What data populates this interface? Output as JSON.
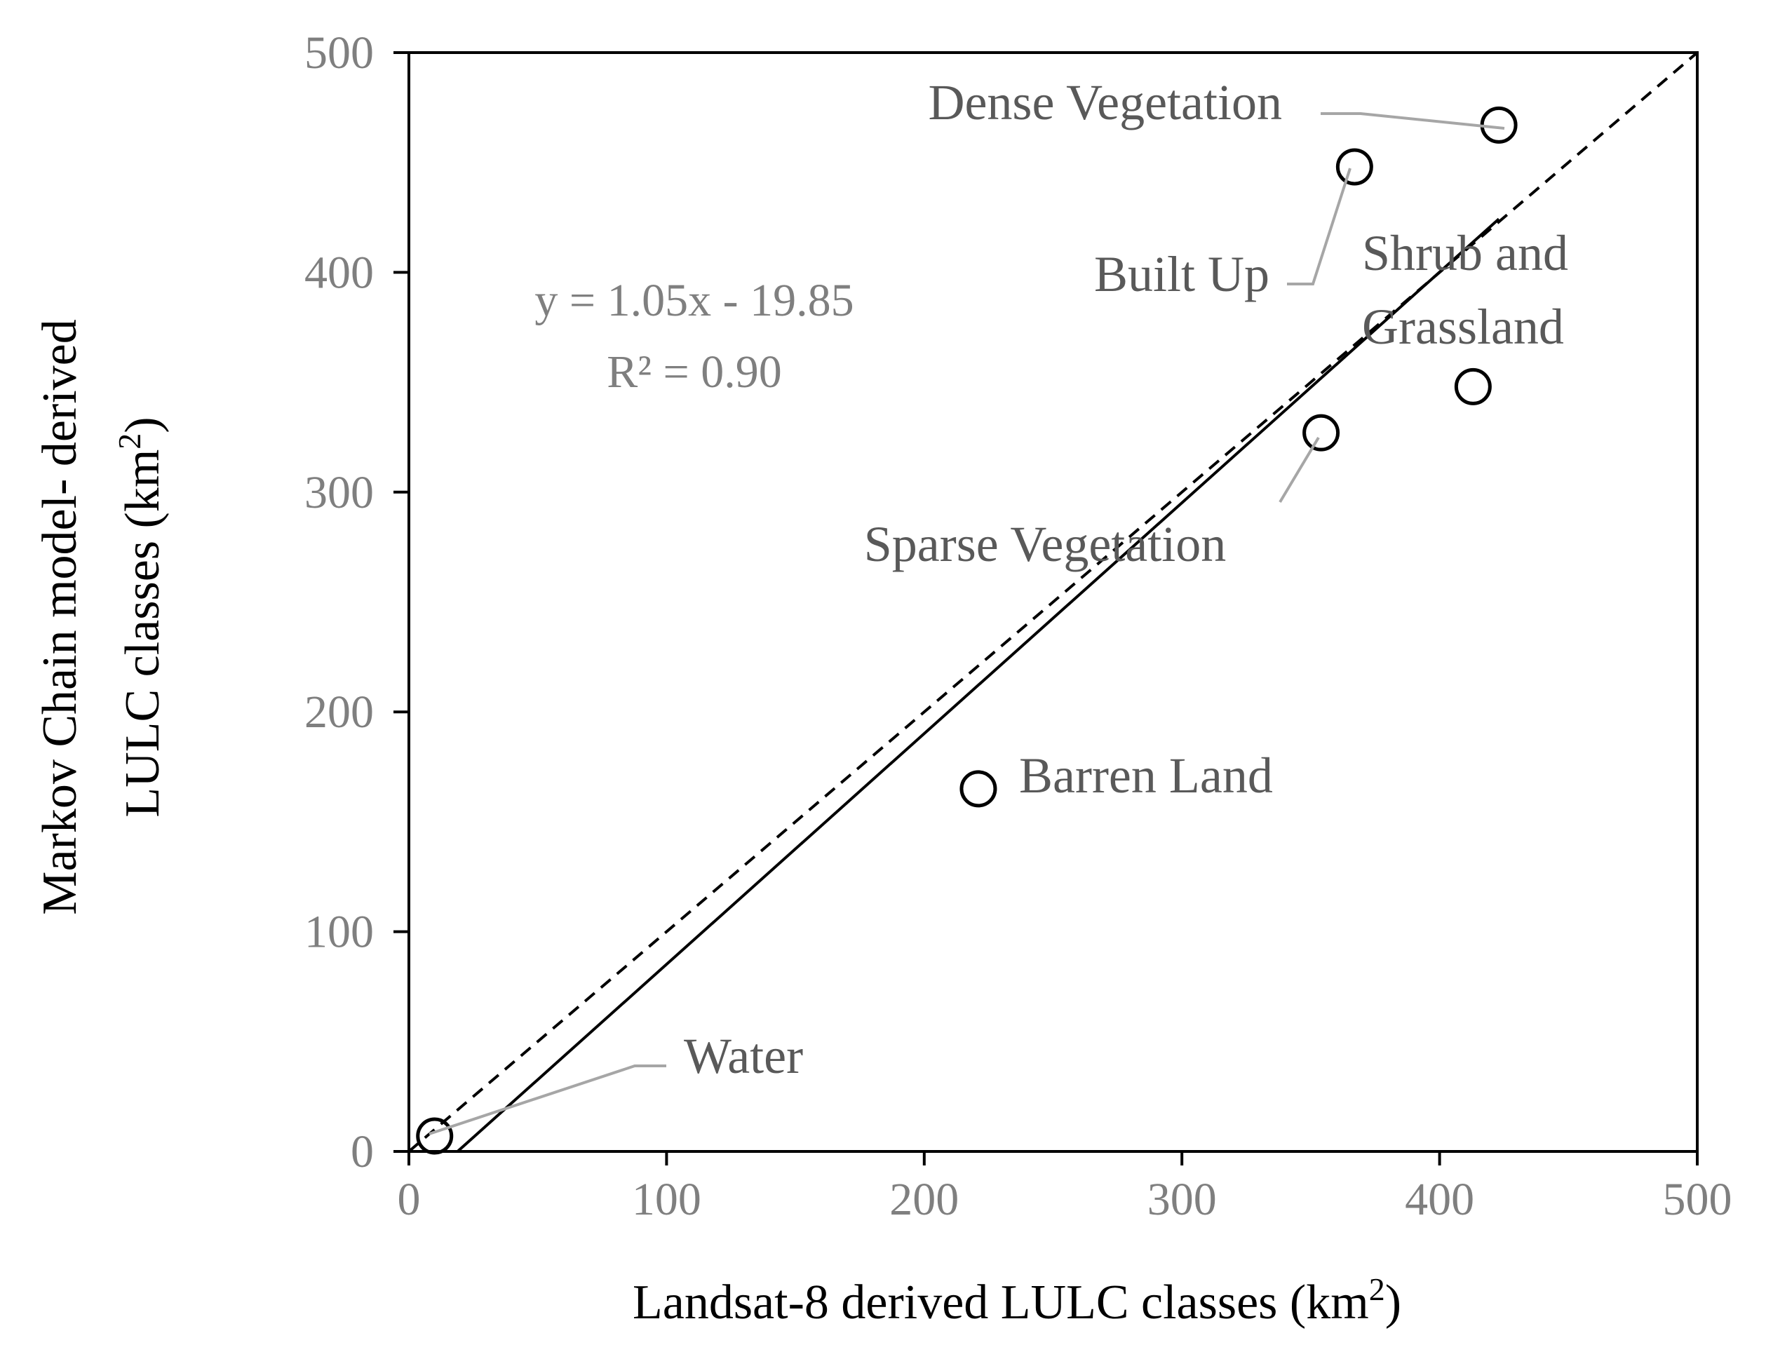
{
  "colors": {
    "axis": "#000000",
    "tick_label": "#7f7f7f",
    "annotation_text": "#595959",
    "leader_line": "#a6a6a6",
    "equation_text": "#7f7f7f"
  },
  "chart_data": {
    "type": "scatter",
    "xlabel": "Landsat-8 derived LULC classes (km",
    "xlabel_sup": "2",
    "xlabel_tail": ")",
    "ylabel_line1": "Markov Chain model- derived",
    "ylabel_line2": "LULC classes (km",
    "ylabel_sup": "2",
    "ylabel_tail": ")",
    "xlim": [
      0,
      500
    ],
    "ylim": [
      0,
      500
    ],
    "xticks": [
      0,
      100,
      200,
      300,
      400,
      500
    ],
    "yticks": [
      0,
      100,
      200,
      300,
      400,
      500
    ],
    "grid": false,
    "points": [
      {
        "label": "Water",
        "x": 10,
        "y": 7
      },
      {
        "label": "Barren Land",
        "x": 221,
        "y": 165
      },
      {
        "label": "Sparse Vegetation",
        "x": 354,
        "y": 327
      },
      {
        "label": "Built Up",
        "x": 367,
        "y": 448
      },
      {
        "label": "Shrub and Grassland",
        "label_lines": [
          "Shrub and",
          "Grassland"
        ],
        "x": 413,
        "y": 348
      },
      {
        "label": "Dense Vegetation",
        "x": 423,
        "y": 467
      }
    ],
    "trendline": {
      "slope": 1.05,
      "intercept": -19.85,
      "x_range": [
        18.9,
        423
      ],
      "style": "solid"
    },
    "reference_line": {
      "name": "1:1",
      "from": [
        0,
        0
      ],
      "to": [
        500,
        500
      ],
      "style": "dashed"
    },
    "equation": {
      "line1": "y = 1.05x - 19.85",
      "line2": "R² = 0.90"
    }
  }
}
